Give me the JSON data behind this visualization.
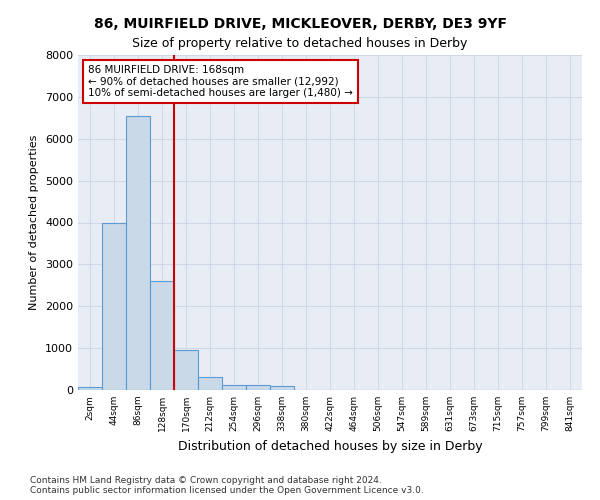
{
  "title_line1": "86, MUIRFIELD DRIVE, MICKLEOVER, DERBY, DE3 9YF",
  "title_line2": "Size of property relative to detached houses in Derby",
  "xlabel": "Distribution of detached houses by size in Derby",
  "ylabel": "Number of detached properties",
  "footnote": "Contains HM Land Registry data © Crown copyright and database right 2024.\nContains public sector information licensed under the Open Government Licence v3.0.",
  "bin_labels": [
    "2sqm",
    "44sqm",
    "86sqm",
    "128sqm",
    "170sqm",
    "212sqm",
    "254sqm",
    "296sqm",
    "338sqm",
    "380sqm",
    "422sqm",
    "464sqm",
    "506sqm",
    "547sqm",
    "589sqm",
    "631sqm",
    "673sqm",
    "715sqm",
    "757sqm",
    "799sqm",
    "841sqm"
  ],
  "bar_values": [
    75,
    3980,
    6540,
    2600,
    960,
    310,
    120,
    120,
    90,
    0,
    0,
    0,
    0,
    0,
    0,
    0,
    0,
    0,
    0,
    0,
    0
  ],
  "bar_color": "#c9d9e8",
  "bar_edge_color": "#5b9bd5",
  "vline_pos": 3.5,
  "vline_color": "#cc0000",
  "annotation_text": "86 MUIRFIELD DRIVE: 168sqm\n← 90% of detached houses are smaller (12,992)\n10% of semi-detached houses are larger (1,480) →",
  "annotation_box_color": "#ffffff",
  "annotation_box_edge": "#cc0000",
  "ylim": [
    0,
    8000
  ],
  "yticks": [
    0,
    1000,
    2000,
    3000,
    4000,
    5000,
    6000,
    7000,
    8000
  ],
  "grid_color": "#d0d8e8",
  "plot_bg_color": "#e8edf5"
}
